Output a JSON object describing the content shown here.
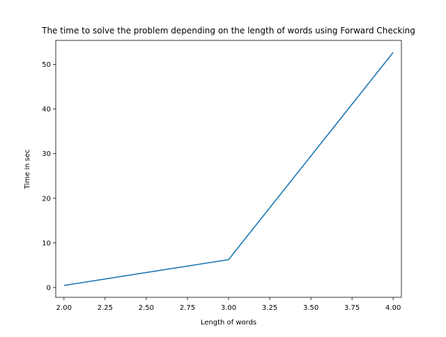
{
  "chart_data": {
    "type": "line",
    "title": "The time to solve the problem depending on the length of words using Forward Checking",
    "xlabel": "Length of words",
    "ylabel": "Time in sec",
    "x": [
      2.0,
      3.0,
      4.0
    ],
    "series": [
      {
        "name": "",
        "color": "#1f77b4",
        "values": [
          0.45,
          6.25,
          52.7
        ]
      }
    ],
    "xlim": [
      1.95,
      4.05
    ],
    "ylim": [
      -2.2,
      55.4
    ],
    "xticks": [
      2.0,
      2.25,
      2.5,
      2.75,
      3.0,
      3.25,
      3.5,
      3.75,
      4.0
    ],
    "xtick_labels": [
      "2.00",
      "2.25",
      "2.50",
      "2.75",
      "3.00",
      "3.25",
      "3.50",
      "3.75",
      "4.00"
    ],
    "yticks": [
      0,
      10,
      20,
      30,
      40,
      50
    ],
    "ytick_labels": [
      "0",
      "10",
      "20",
      "30",
      "40",
      "50"
    ],
    "grid": false,
    "legend": "none"
  }
}
